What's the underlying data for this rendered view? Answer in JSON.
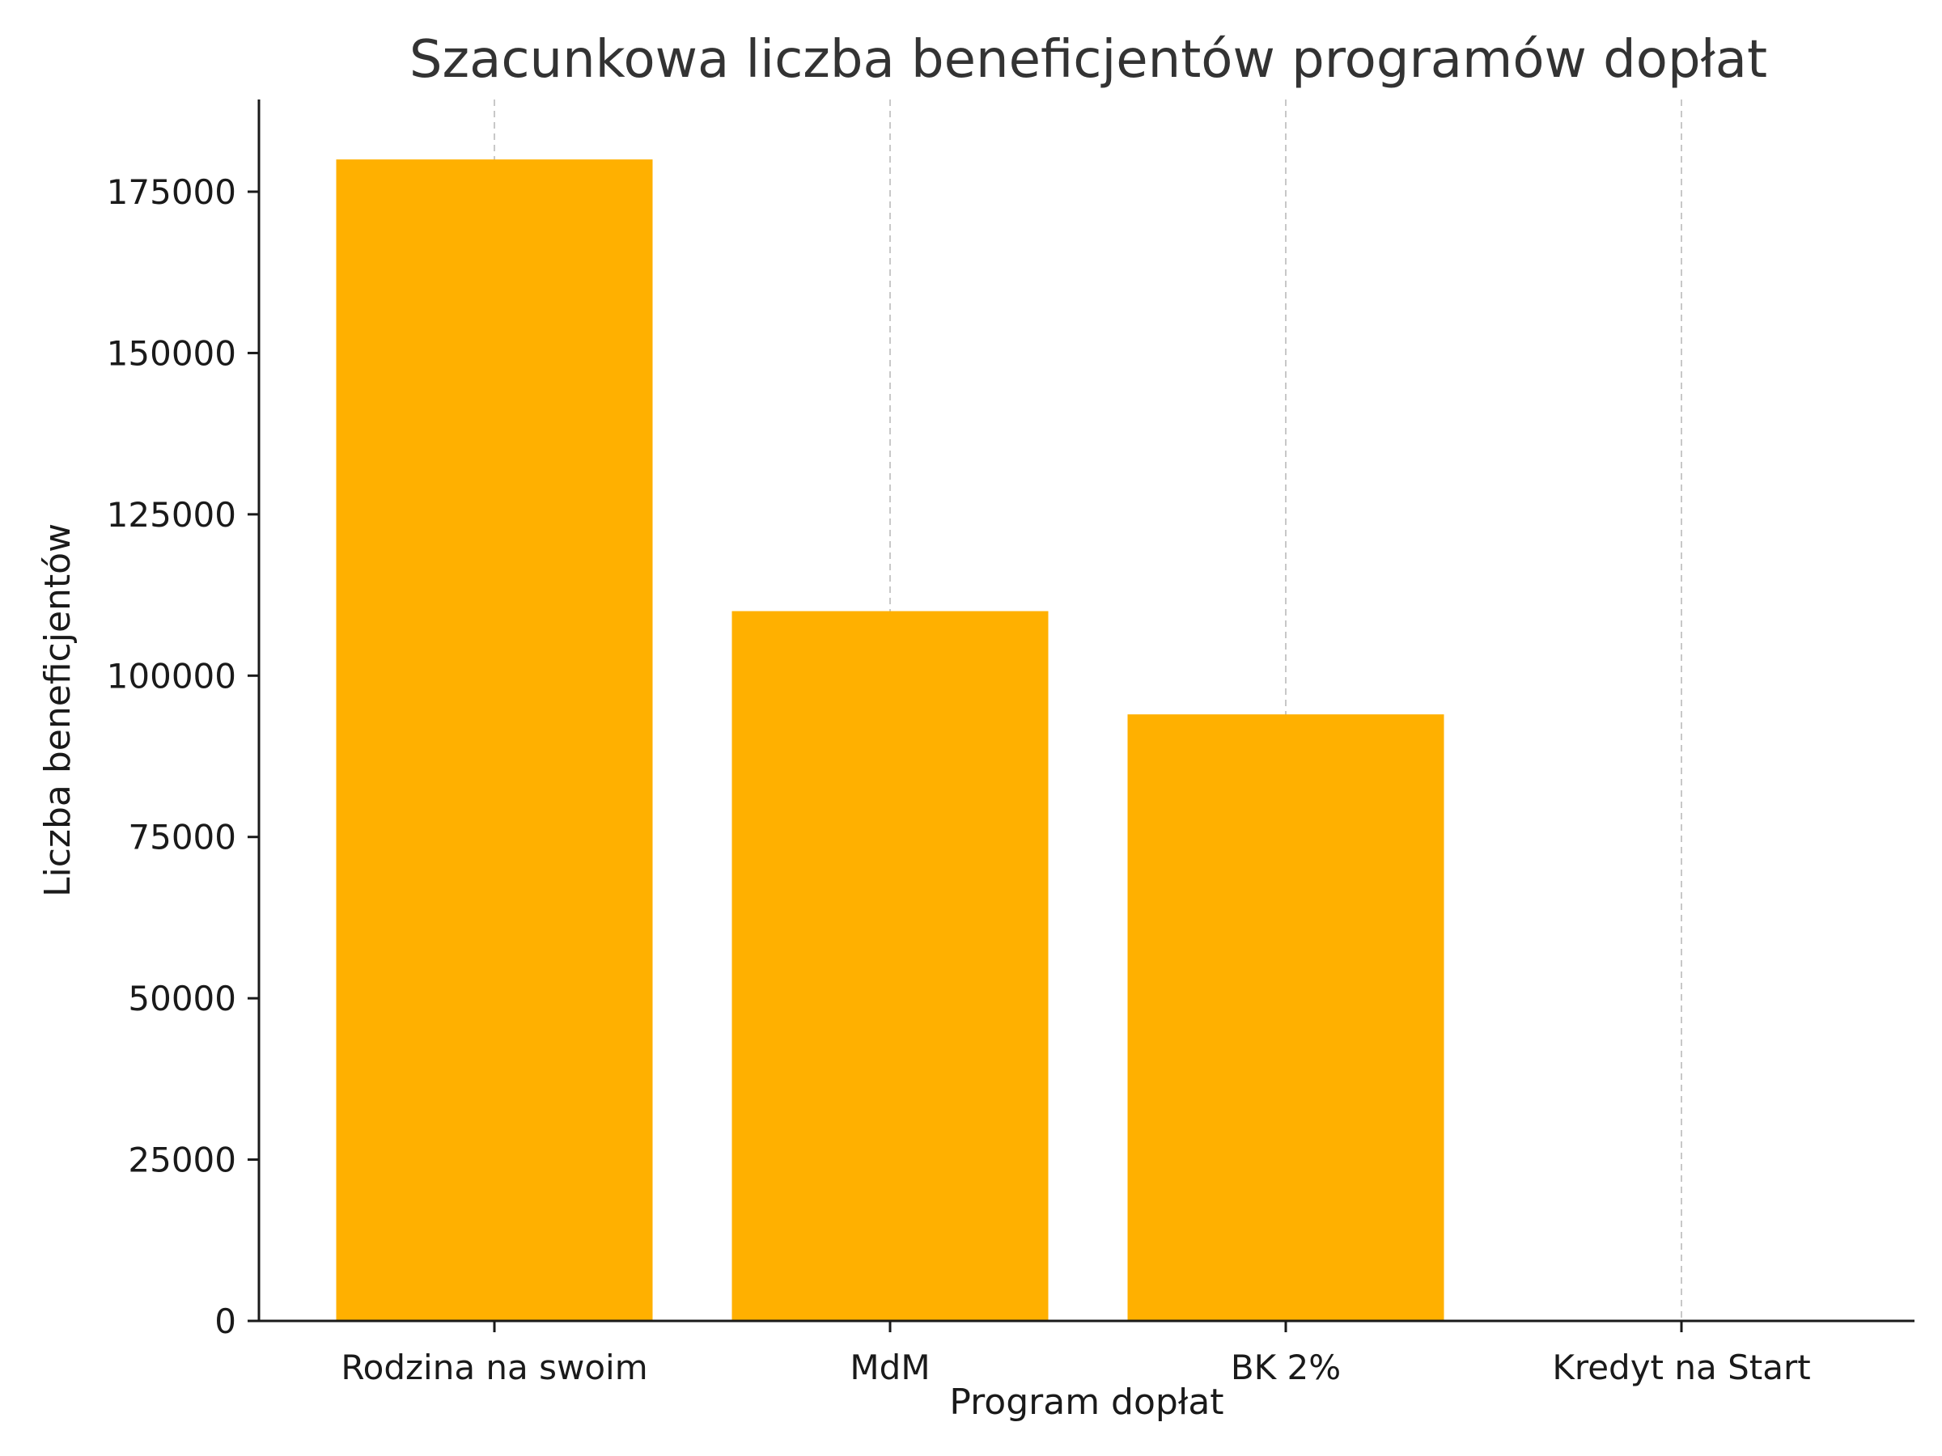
{
  "chart_data": {
    "type": "bar",
    "title": "Szacunkowa liczba beneficjentów programów dopłat",
    "xlabel": "Program dopłat",
    "ylabel": "Liczba beneficjentów",
    "categories": [
      "Rodzina na swoim",
      "MdM",
      "BK 2%",
      "Kredyt na Start"
    ],
    "values": [
      180000,
      110000,
      94000,
      0
    ],
    "ylim": [
      0,
      189000
    ],
    "yticks": [
      0,
      25000,
      50000,
      75000,
      100000,
      125000,
      150000,
      175000
    ],
    "grid": {
      "x": true,
      "y": false,
      "style": "dashed"
    },
    "bar_color": "#FFB000",
    "legend": null
  }
}
